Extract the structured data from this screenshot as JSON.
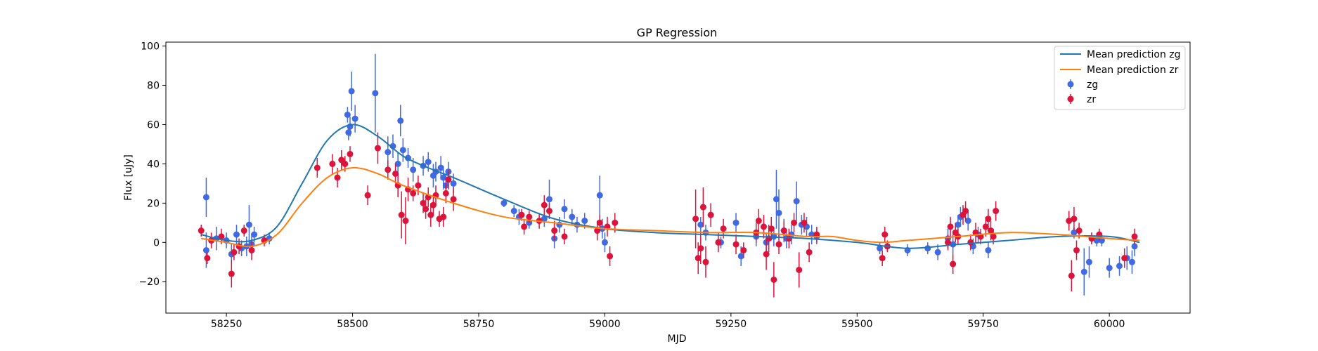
{
  "chart_data": {
    "type": "scatter",
    "title": "GP Regression",
    "xlabel": "MJD",
    "ylabel": "Flux [uJy]",
    "xlim": [
      58130,
      60160
    ],
    "ylim": [
      -36,
      102
    ],
    "x_ticks": [
      58250,
      58500,
      58750,
      59000,
      59250,
      59500,
      59750,
      60000
    ],
    "y_ticks": [
      -20,
      0,
      20,
      40,
      60,
      80,
      100
    ],
    "grid": false,
    "legend_position": "top-right",
    "lines": [
      {
        "name": "Mean prediction zg",
        "color": "#1f77b4",
        "points": [
          [
            58200,
            4
          ],
          [
            58250,
            1
          ],
          [
            58300,
            1
          ],
          [
            58350,
            8
          ],
          [
            58400,
            30
          ],
          [
            58450,
            52
          ],
          [
            58500,
            60
          ],
          [
            58550,
            54
          ],
          [
            58600,
            44
          ],
          [
            58650,
            38
          ],
          [
            58700,
            33
          ],
          [
            58800,
            22
          ],
          [
            58900,
            12
          ],
          [
            59000,
            7
          ],
          [
            59100,
            5
          ],
          [
            59200,
            4
          ],
          [
            59300,
            3
          ],
          [
            59400,
            2
          ],
          [
            59500,
            0
          ],
          [
            59600,
            -3
          ],
          [
            59700,
            -1
          ],
          [
            59800,
            1
          ],
          [
            59900,
            3
          ],
          [
            60000,
            3
          ],
          [
            60060,
            0
          ]
        ]
      },
      {
        "name": "Mean prediction zr",
        "color": "#ff7f0e",
        "points": [
          [
            58200,
            2
          ],
          [
            58250,
            0
          ],
          [
            58300,
            -2
          ],
          [
            58350,
            4
          ],
          [
            58400,
            20
          ],
          [
            58450,
            33
          ],
          [
            58500,
            38
          ],
          [
            58550,
            35
          ],
          [
            58600,
            29
          ],
          [
            58700,
            20
          ],
          [
            58800,
            13
          ],
          [
            58900,
            10
          ],
          [
            59000,
            7
          ],
          [
            59100,
            6
          ],
          [
            59200,
            5
          ],
          [
            59300,
            5
          ],
          [
            59400,
            3
          ],
          [
            59450,
            3
          ],
          [
            59500,
            1
          ],
          [
            59550,
            0
          ],
          [
            59600,
            1
          ],
          [
            59700,
            3
          ],
          [
            59800,
            5
          ],
          [
            59900,
            4
          ],
          [
            60000,
            2
          ],
          [
            60060,
            1
          ]
        ]
      }
    ],
    "series": [
      {
        "name": "zg",
        "color": "#4169e1",
        "points": [
          [
            58210,
            23,
            10
          ],
          [
            58210,
            -4,
            9
          ],
          [
            58230,
            2,
            6
          ],
          [
            58250,
            1,
            4
          ],
          [
            58260,
            -6,
            5
          ],
          [
            58270,
            4,
            5
          ],
          [
            58280,
            -3,
            4
          ],
          [
            58290,
            -2,
            5
          ],
          [
            58295,
            9,
            10
          ],
          [
            58300,
            -1,
            5
          ],
          [
            58305,
            4,
            4
          ],
          [
            58335,
            2,
            3
          ],
          [
            58490,
            65,
            4
          ],
          [
            58492,
            56,
            4
          ],
          [
            58495,
            59,
            5
          ],
          [
            58498,
            77,
            10
          ],
          [
            58505,
            63,
            7
          ],
          [
            58545,
            76,
            20
          ],
          [
            58570,
            46,
            8
          ],
          [
            58580,
            49,
            6
          ],
          [
            58590,
            40,
            6
          ],
          [
            58595,
            62,
            8
          ],
          [
            58600,
            47,
            6
          ],
          [
            58610,
            43,
            5
          ],
          [
            58620,
            37,
            6
          ],
          [
            58640,
            39,
            5
          ],
          [
            58650,
            41,
            5
          ],
          [
            58660,
            34,
            6
          ],
          [
            58665,
            36,
            5
          ],
          [
            58675,
            38,
            6
          ],
          [
            58680,
            33,
            6
          ],
          [
            58685,
            29,
            5
          ],
          [
            58690,
            36,
            5
          ],
          [
            58700,
            30,
            5
          ],
          [
            58800,
            20,
            2
          ],
          [
            58820,
            16,
            3
          ],
          [
            58830,
            13,
            4
          ],
          [
            58850,
            10,
            3
          ],
          [
            58880,
            12,
            4
          ],
          [
            58890,
            22,
            10
          ],
          [
            58900,
            2,
            5
          ],
          [
            58910,
            9,
            4
          ],
          [
            58920,
            17,
            5
          ],
          [
            58935,
            13,
            4
          ],
          [
            58945,
            9,
            4
          ],
          [
            58960,
            11,
            4
          ],
          [
            58990,
            24,
            10
          ],
          [
            58995,
            7,
            5
          ],
          [
            59000,
            0,
            5
          ],
          [
            59190,
            9,
            4
          ],
          [
            59200,
            5,
            4
          ],
          [
            59230,
            0,
            3
          ],
          [
            59260,
            10,
            5
          ],
          [
            59270,
            -7,
            5
          ],
          [
            59300,
            3,
            5
          ],
          [
            59320,
            0,
            5
          ],
          [
            59335,
            3,
            5
          ],
          [
            59340,
            22,
            15
          ],
          [
            59345,
            15,
            12
          ],
          [
            59355,
            6,
            6
          ],
          [
            59360,
            2,
            5
          ],
          [
            59370,
            4,
            5
          ],
          [
            59380,
            21,
            10
          ],
          [
            59390,
            9,
            5
          ],
          [
            59400,
            8,
            5
          ],
          [
            59410,
            4,
            5
          ],
          [
            59420,
            3,
            4
          ],
          [
            59545,
            -3,
            3
          ],
          [
            59600,
            -4,
            3
          ],
          [
            59640,
            -3,
            3
          ],
          [
            59660,
            -5,
            4
          ],
          [
            59680,
            2,
            5
          ],
          [
            59690,
            -1,
            5
          ],
          [
            59700,
            9,
            5
          ],
          [
            59705,
            13,
            5
          ],
          [
            59720,
            11,
            5
          ],
          [
            59730,
            -2,
            4
          ],
          [
            59740,
            4,
            4
          ],
          [
            59760,
            -4,
            4
          ],
          [
            59930,
            5,
            3
          ],
          [
            59950,
            -15,
            12
          ],
          [
            59960,
            -10,
            8
          ],
          [
            59965,
            2,
            3
          ],
          [
            59975,
            1,
            3
          ],
          [
            59985,
            1,
            3
          ],
          [
            60000,
            -13,
            5
          ],
          [
            60020,
            -12,
            5
          ],
          [
            60035,
            -8,
            6
          ],
          [
            60045,
            -10,
            6
          ],
          [
            60050,
            -2,
            5
          ]
        ]
      },
      {
        "name": "zr",
        "color": "#dc143c",
        "points": [
          [
            58200,
            6,
            3
          ],
          [
            58212,
            -8,
            3
          ],
          [
            58220,
            1,
            4
          ],
          [
            58240,
            3,
            4
          ],
          [
            58260,
            -16,
            7
          ],
          [
            58265,
            -5,
            4
          ],
          [
            58275,
            -2,
            4
          ],
          [
            58285,
            6,
            3
          ],
          [
            58300,
            -4,
            5
          ],
          [
            58325,
            1,
            3
          ],
          [
            58430,
            38,
            5
          ],
          [
            58460,
            40,
            5
          ],
          [
            58470,
            33,
            5
          ],
          [
            58478,
            42,
            5
          ],
          [
            58485,
            40,
            4
          ],
          [
            58495,
            45,
            4
          ],
          [
            58530,
            24,
            5
          ],
          [
            58550,
            48,
            8
          ],
          [
            58570,
            37,
            5
          ],
          [
            58585,
            35,
            5
          ],
          [
            58590,
            29,
            6
          ],
          [
            58597,
            14,
            12
          ],
          [
            58605,
            11,
            12
          ],
          [
            58610,
            27,
            6
          ],
          [
            58620,
            25,
            4
          ],
          [
            58630,
            29,
            5
          ],
          [
            58640,
            20,
            5
          ],
          [
            58645,
            17,
            5
          ],
          [
            58650,
            23,
            5
          ],
          [
            58655,
            14,
            6
          ],
          [
            58660,
            19,
            5
          ],
          [
            58665,
            24,
            5
          ],
          [
            58672,
            12,
            4
          ],
          [
            58680,
            13,
            5
          ],
          [
            58685,
            25,
            5
          ],
          [
            58690,
            32,
            5
          ],
          [
            58700,
            22,
            6
          ],
          [
            58835,
            14,
            3
          ],
          [
            58840,
            8,
            4
          ],
          [
            58850,
            13,
            3
          ],
          [
            58870,
            11,
            4
          ],
          [
            58880,
            19,
            5
          ],
          [
            58890,
            16,
            4
          ],
          [
            58900,
            6,
            5
          ],
          [
            58920,
            3,
            4
          ],
          [
            58985,
            6,
            5
          ],
          [
            58990,
            10,
            4
          ],
          [
            59005,
            8,
            5
          ],
          [
            59010,
            -7,
            5
          ],
          [
            59020,
            10,
            5
          ],
          [
            59180,
            12,
            15
          ],
          [
            59185,
            -8,
            8
          ],
          [
            59190,
            -3,
            8
          ],
          [
            59195,
            18,
            10
          ],
          [
            59200,
            -10,
            8
          ],
          [
            59210,
            14,
            6
          ],
          [
            59225,
            0,
            5
          ],
          [
            59235,
            7,
            5
          ],
          [
            59260,
            -1,
            5
          ],
          [
            59275,
            -4,
            4
          ],
          [
            59300,
            5,
            5
          ],
          [
            59305,
            11,
            6
          ],
          [
            59315,
            8,
            6
          ],
          [
            59320,
            -6,
            8
          ],
          [
            59325,
            2,
            7
          ],
          [
            59330,
            7,
            6
          ],
          [
            59335,
            -19,
            9
          ],
          [
            59345,
            -1,
            5
          ],
          [
            59355,
            6,
            5
          ],
          [
            59365,
            2,
            5
          ],
          [
            59375,
            10,
            5
          ],
          [
            59385,
            -14,
            9
          ],
          [
            59395,
            10,
            5
          ],
          [
            59405,
            -5,
            5
          ],
          [
            59420,
            4,
            4
          ],
          [
            59550,
            -8,
            4
          ],
          [
            59555,
            4,
            4
          ],
          [
            59560,
            -2,
            3
          ],
          [
            59680,
            0,
            4
          ],
          [
            59685,
            8,
            5
          ],
          [
            59690,
            -11,
            5
          ],
          [
            59695,
            5,
            5
          ],
          [
            59700,
            3,
            4
          ],
          [
            59710,
            14,
            5
          ],
          [
            59715,
            16,
            5
          ],
          [
            59725,
            0,
            4
          ],
          [
            59735,
            5,
            5
          ],
          [
            59745,
            3,
            4
          ],
          [
            59755,
            8,
            5
          ],
          [
            59760,
            12,
            5
          ],
          [
            59765,
            6,
            5
          ],
          [
            59770,
            3,
            4
          ],
          [
            59775,
            16,
            5
          ],
          [
            59920,
            11,
            5
          ],
          [
            59925,
            -17,
            8
          ],
          [
            59930,
            12,
            6
          ],
          [
            59935,
            -4,
            5
          ],
          [
            59940,
            6,
            4
          ],
          [
            59965,
            2,
            3
          ],
          [
            59980,
            4,
            3
          ],
          [
            60030,
            -8,
            5
          ],
          [
            60050,
            3,
            4
          ]
        ]
      }
    ]
  }
}
